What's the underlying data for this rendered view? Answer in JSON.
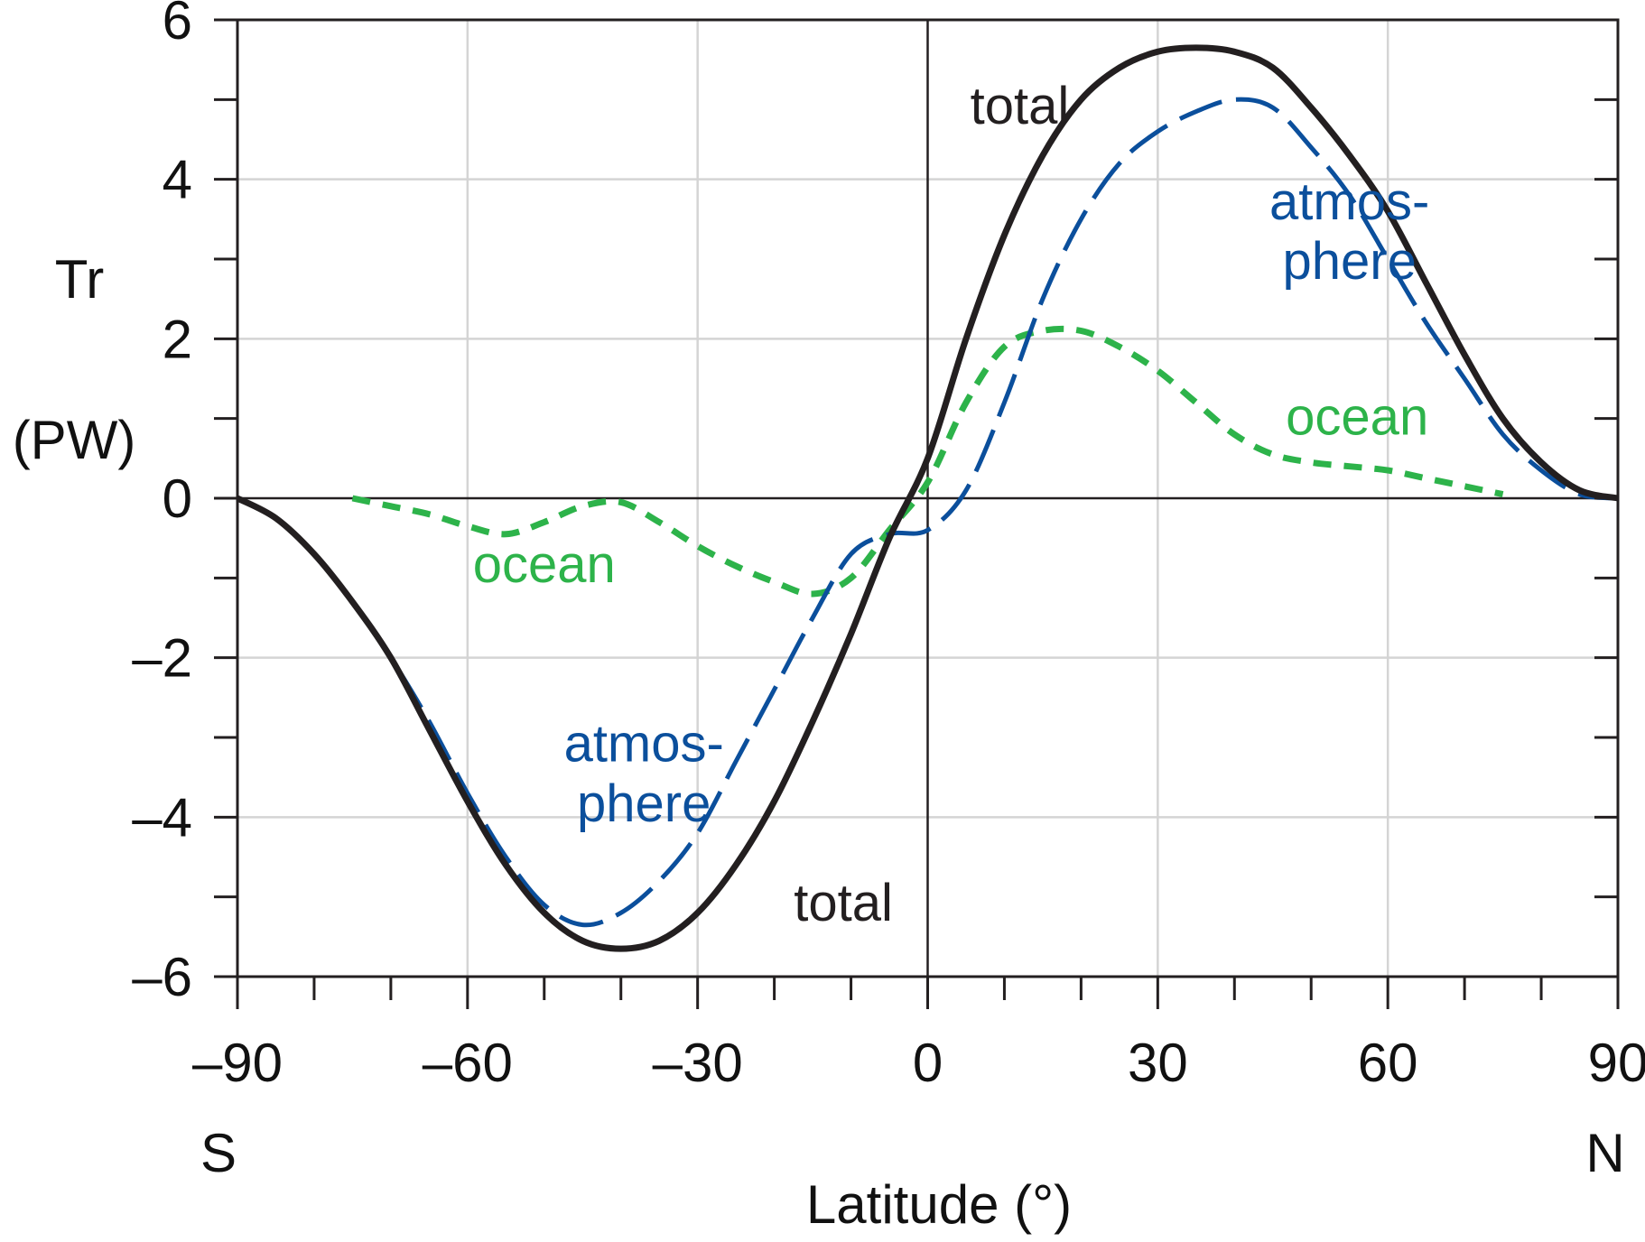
{
  "chart_data": {
    "type": "line",
    "xlabel": "Latitude (°)",
    "ylabel": "Tr",
    "yunit": "(PW)",
    "xlim": [
      -90,
      90
    ],
    "ylim": [
      -6,
      6
    ],
    "x_major_ticks": [
      -90,
      -60,
      -30,
      0,
      30,
      60,
      90
    ],
    "x_tick_labels": [
      "–90",
      "–60",
      "–30",
      "0",
      "30",
      "60",
      "90"
    ],
    "x_minor_ticks": [
      -80,
      -70,
      -50,
      -40,
      -20,
      -10,
      10,
      20,
      40,
      50,
      70,
      80
    ],
    "y_major_ticks": [
      -6,
      -4,
      -2,
      0,
      2,
      4,
      6
    ],
    "y_tick_labels": [
      "–6",
      "–4",
      "–2",
      "0",
      "2",
      "4",
      "6"
    ],
    "y_minor_ticks": [
      -5,
      -3,
      -1,
      1,
      3,
      5
    ],
    "x_end_labels": {
      "left": "S",
      "right": "N"
    },
    "grid": true,
    "series": [
      {
        "name": "total",
        "color": "#231f20",
        "style": "solid",
        "x": [
          -90,
          -85,
          -80,
          -75,
          -70,
          -65,
          -60,
          -55,
          -50,
          -45,
          -40,
          -35,
          -30,
          -25,
          -20,
          -15,
          -10,
          -5,
          0,
          5,
          10,
          15,
          20,
          25,
          30,
          35,
          40,
          45,
          50,
          55,
          60,
          65,
          70,
          75,
          80,
          85,
          90
        ],
        "y": [
          0,
          -0.25,
          -0.7,
          -1.3,
          -2.0,
          -2.9,
          -3.8,
          -4.6,
          -5.2,
          -5.55,
          -5.65,
          -5.55,
          -5.2,
          -4.6,
          -3.8,
          -2.8,
          -1.7,
          -0.5,
          0.5,
          2.0,
          3.3,
          4.3,
          5.0,
          5.4,
          5.6,
          5.65,
          5.6,
          5.4,
          4.9,
          4.3,
          3.6,
          2.7,
          1.8,
          1.0,
          0.45,
          0.1,
          0
        ]
      },
      {
        "name": "atmosphere",
        "color": "#0b4f9c",
        "style": "dashed",
        "x": [
          -90,
          -85,
          -80,
          -75,
          -70,
          -65,
          -60,
          -55,
          -50,
          -45,
          -40,
          -35,
          -30,
          -25,
          -20,
          -15,
          -10,
          -5,
          0,
          5,
          10,
          15,
          20,
          25,
          30,
          35,
          40,
          45,
          50,
          55,
          60,
          65,
          70,
          75,
          80,
          85,
          90
        ],
        "y": [
          0,
          -0.25,
          -0.7,
          -1.3,
          -2.0,
          -2.8,
          -3.7,
          -4.5,
          -5.1,
          -5.35,
          -5.2,
          -4.8,
          -4.2,
          -3.3,
          -2.4,
          -1.5,
          -0.7,
          -0.45,
          -0.4,
          0.1,
          1.2,
          2.5,
          3.5,
          4.2,
          4.6,
          4.85,
          5.0,
          4.9,
          4.4,
          3.8,
          3.0,
          2.2,
          1.5,
          0.8,
          0.35,
          0.05,
          0
        ]
      },
      {
        "name": "ocean",
        "color": "#2db34a",
        "style": "dotted",
        "x": [
          -75,
          -70,
          -65,
          -60,
          -55,
          -50,
          -45,
          -40,
          -35,
          -30,
          -25,
          -20,
          -15,
          -10,
          -5,
          0,
          5,
          10,
          15,
          20,
          25,
          30,
          35,
          40,
          45,
          50,
          55,
          60,
          65,
          70,
          75
        ],
        "y": [
          0,
          -0.1,
          -0.2,
          -0.35,
          -0.45,
          -0.3,
          -0.1,
          -0.05,
          -0.3,
          -0.6,
          -0.85,
          -1.05,
          -1.2,
          -1.0,
          -0.4,
          0.2,
          1.2,
          1.9,
          2.1,
          2.1,
          1.9,
          1.6,
          1.2,
          0.8,
          0.55,
          0.45,
          0.4,
          0.35,
          0.25,
          0.15,
          0.05
        ]
      }
    ],
    "annotations": [
      {
        "text": "total",
        "x": 12,
        "y": 4.7,
        "color": "#231f20"
      },
      {
        "text": "atmos-",
        "x": 55,
        "y": 3.5,
        "color": "#0b4f9c"
      },
      {
        "text": "phere",
        "x": 55,
        "y": 2.75,
        "color": "#0b4f9c"
      },
      {
        "text": "ocean",
        "x": 56,
        "y": 0.8,
        "color": "#2db34a"
      },
      {
        "text": "ocean",
        "x": -50,
        "y": -1.05,
        "color": "#2db34a"
      },
      {
        "text": "atmos-",
        "x": -37,
        "y": -3.3,
        "color": "#0b4f9c"
      },
      {
        "text": "phere",
        "x": -37,
        "y": -4.05,
        "color": "#0b4f9c"
      },
      {
        "text": "total",
        "x": -11,
        "y": -5.3,
        "color": "#231f20"
      }
    ]
  }
}
